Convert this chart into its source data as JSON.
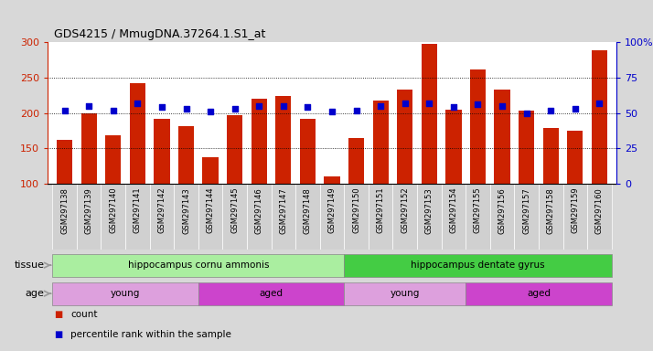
{
  "title": "GDS4215 / MmugDNA.37264.1.S1_at",
  "samples": [
    "GSM297138",
    "GSM297139",
    "GSM297140",
    "GSM297141",
    "GSM297142",
    "GSM297143",
    "GSM297144",
    "GSM297145",
    "GSM297146",
    "GSM297147",
    "GSM297148",
    "GSM297149",
    "GSM297150",
    "GSM297151",
    "GSM297152",
    "GSM297153",
    "GSM297154",
    "GSM297155",
    "GSM297156",
    "GSM297157",
    "GSM297158",
    "GSM297159",
    "GSM297160"
  ],
  "counts": [
    162,
    200,
    168,
    242,
    192,
    181,
    137,
    197,
    220,
    224,
    192,
    110,
    165,
    218,
    233,
    298,
    205,
    262,
    233,
    203,
    179,
    175,
    288
  ],
  "percentiles": [
    52,
    55,
    52,
    57,
    54,
    53,
    51,
    53,
    55,
    55,
    54,
    51,
    52,
    55,
    57,
    57,
    54,
    56,
    55,
    50,
    52,
    53,
    57
  ],
  "bar_color": "#cc2200",
  "dot_color": "#0000cc",
  "ymin": 100,
  "ymax": 300,
  "yticks": [
    100,
    150,
    200,
    250,
    300
  ],
  "y2min": 0,
  "y2max": 100,
  "y2ticks": [
    0,
    25,
    50,
    75,
    100
  ],
  "grid_lines": [
    150,
    200,
    250
  ],
  "tissue_groups": [
    {
      "label": "hippocampus cornu ammonis",
      "start": 0,
      "end": 12,
      "color": "#aaeea0"
    },
    {
      "label": "hippocampus dentate gyrus",
      "start": 12,
      "end": 23,
      "color": "#44cc44"
    }
  ],
  "age_groups": [
    {
      "label": "young",
      "start": 0,
      "end": 6,
      "color": "#dda0dd"
    },
    {
      "label": "aged",
      "start": 6,
      "end": 12,
      "color": "#cc44cc"
    },
    {
      "label": "young",
      "start": 12,
      "end": 17,
      "color": "#dda0dd"
    },
    {
      "label": "aged",
      "start": 17,
      "end": 23,
      "color": "#cc44cc"
    }
  ],
  "tissue_label": "tissue",
  "age_label": "age",
  "legend_count": "count",
  "legend_pct": "percentile rank within the sample",
  "bg_color": "#d8d8d8",
  "plot_bg": "#ffffff",
  "xtick_bg": "#d0d0d0",
  "arrow_color": "#999999"
}
